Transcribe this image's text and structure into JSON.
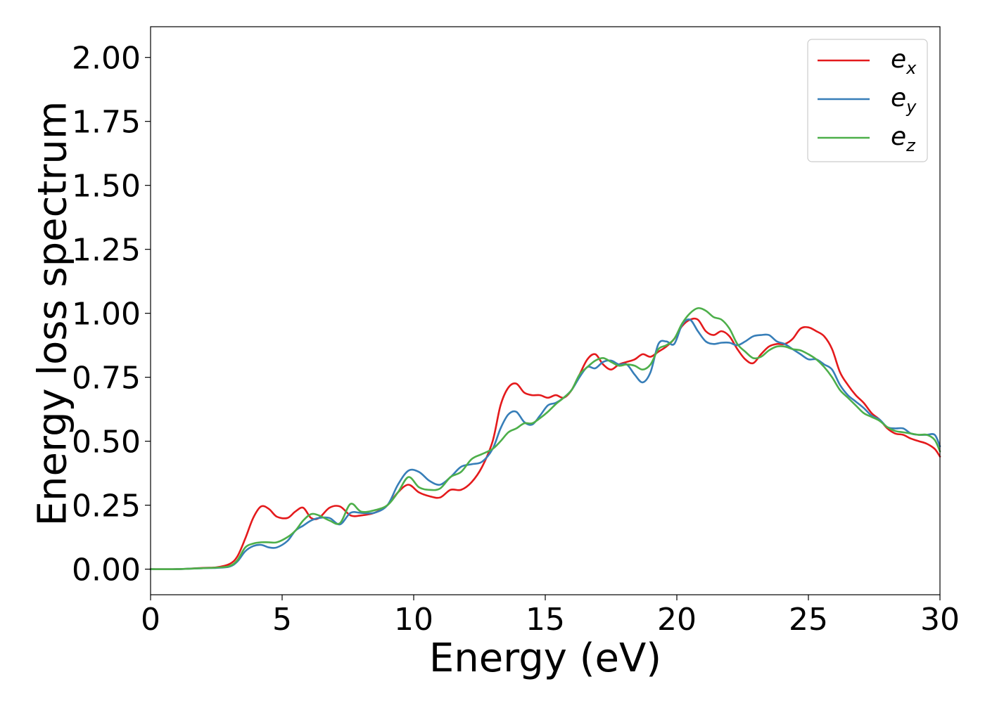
{
  "chart_data": {
    "type": "line",
    "title": "",
    "xlabel": "Energy (eV)",
    "ylabel": "Energy loss spectrum",
    "xlim": [
      0,
      30
    ],
    "ylim": [
      -0.1,
      2.12
    ],
    "xticks": [
      0,
      5,
      10,
      15,
      20,
      25,
      30
    ],
    "xtick_labels": [
      "0",
      "5",
      "10",
      "15",
      "20",
      "25",
      "30"
    ],
    "yticks": [
      0.0,
      0.25,
      0.5,
      0.75,
      1.0,
      1.25,
      1.5,
      1.75,
      2.0
    ],
    "ytick_labels": [
      "0.00",
      "0.25",
      "0.50",
      "0.75",
      "1.00",
      "1.25",
      "1.50",
      "1.75",
      "2.00"
    ],
    "grid": false,
    "legend_position": "top-right",
    "series": [
      {
        "name": "e_x",
        "label_base": "e",
        "label_sub": "x",
        "color": "#e41a1c",
        "x": [
          0,
          1,
          2,
          2.5,
          3.0,
          3.3,
          3.6,
          3.9,
          4.2,
          4.5,
          4.8,
          5.2,
          5.5,
          5.8,
          6.1,
          6.4,
          6.8,
          7.2,
          7.6,
          8.0,
          8.5,
          9.0,
          9.4,
          9.8,
          10.2,
          10.6,
          11.0,
          11.4,
          11.8,
          12.2,
          12.6,
          13.0,
          13.3,
          13.6,
          13.9,
          14.2,
          14.5,
          14.8,
          15.1,
          15.4,
          15.7,
          16.0,
          16.3,
          16.6,
          16.9,
          17.2,
          17.5,
          17.8,
          18.1,
          18.4,
          18.7,
          19.0,
          19.3,
          19.6,
          19.9,
          20.2,
          20.5,
          20.8,
          21.1,
          21.4,
          21.7,
          22.0,
          22.3,
          22.6,
          22.9,
          23.2,
          23.5,
          23.8,
          24.1,
          24.4,
          24.7,
          25.0,
          25.3,
          25.6,
          25.9,
          26.2,
          26.5,
          26.8,
          27.1,
          27.4,
          27.7,
          28.0,
          28.3,
          28.6,
          28.9,
          29.2,
          29.5,
          29.8,
          30
        ],
        "y": [
          0.0,
          0.0,
          0.005,
          0.007,
          0.02,
          0.05,
          0.12,
          0.2,
          0.245,
          0.235,
          0.205,
          0.2,
          0.225,
          0.24,
          0.2,
          0.2,
          0.24,
          0.245,
          0.21,
          0.21,
          0.22,
          0.25,
          0.3,
          0.33,
          0.3,
          0.285,
          0.28,
          0.31,
          0.31,
          0.34,
          0.4,
          0.5,
          0.64,
          0.71,
          0.725,
          0.69,
          0.68,
          0.68,
          0.67,
          0.68,
          0.67,
          0.7,
          0.76,
          0.82,
          0.84,
          0.8,
          0.78,
          0.8,
          0.81,
          0.82,
          0.84,
          0.83,
          0.85,
          0.87,
          0.9,
          0.95,
          0.975,
          0.975,
          0.93,
          0.915,
          0.93,
          0.91,
          0.86,
          0.82,
          0.805,
          0.84,
          0.87,
          0.88,
          0.88,
          0.9,
          0.94,
          0.945,
          0.93,
          0.91,
          0.86,
          0.77,
          0.72,
          0.68,
          0.65,
          0.61,
          0.585,
          0.55,
          0.53,
          0.525,
          0.51,
          0.5,
          0.49,
          0.47,
          0.44
        ]
      },
      {
        "name": "e_y",
        "label_base": "e",
        "label_sub": "y",
        "color": "#377eb8",
        "x": [
          0,
          1,
          2,
          2.5,
          3.0,
          3.3,
          3.6,
          3.9,
          4.2,
          4.5,
          4.8,
          5.2,
          5.5,
          5.8,
          6.1,
          6.4,
          6.8,
          7.2,
          7.6,
          8.0,
          8.5,
          9.0,
          9.4,
          9.8,
          10.2,
          10.6,
          11.0,
          11.4,
          11.8,
          12.2,
          12.6,
          13.0,
          13.3,
          13.6,
          13.9,
          14.2,
          14.5,
          14.8,
          15.1,
          15.4,
          15.7,
          16.0,
          16.3,
          16.6,
          16.9,
          17.2,
          17.5,
          17.8,
          18.1,
          18.4,
          18.7,
          19.0,
          19.3,
          19.6,
          19.9,
          20.2,
          20.5,
          20.8,
          21.1,
          21.4,
          21.7,
          22.0,
          22.3,
          22.6,
          22.9,
          23.2,
          23.5,
          23.8,
          24.1,
          24.4,
          24.7,
          25.0,
          25.3,
          25.6,
          25.9,
          26.2,
          26.5,
          26.8,
          27.1,
          27.4,
          27.7,
          28.0,
          28.3,
          28.6,
          28.9,
          29.2,
          29.5,
          29.8,
          30
        ],
        "y": [
          0.0,
          0.0,
          0.004,
          0.005,
          0.01,
          0.03,
          0.07,
          0.09,
          0.095,
          0.085,
          0.085,
          0.11,
          0.15,
          0.17,
          0.19,
          0.2,
          0.2,
          0.175,
          0.22,
          0.22,
          0.22,
          0.25,
          0.33,
          0.385,
          0.38,
          0.345,
          0.33,
          0.36,
          0.4,
          0.41,
          0.42,
          0.47,
          0.55,
          0.605,
          0.615,
          0.575,
          0.565,
          0.6,
          0.64,
          0.65,
          0.67,
          0.7,
          0.75,
          0.79,
          0.785,
          0.81,
          0.815,
          0.8,
          0.8,
          0.76,
          0.73,
          0.77,
          0.88,
          0.89,
          0.88,
          0.955,
          0.975,
          0.93,
          0.89,
          0.88,
          0.885,
          0.885,
          0.875,
          0.89,
          0.91,
          0.915,
          0.915,
          0.89,
          0.88,
          0.86,
          0.84,
          0.82,
          0.82,
          0.8,
          0.78,
          0.72,
          0.68,
          0.655,
          0.63,
          0.6,
          0.585,
          0.555,
          0.55,
          0.55,
          0.53,
          0.525,
          0.525,
          0.525,
          0.48
        ]
      },
      {
        "name": "e_z",
        "label_base": "e",
        "label_sub": "z",
        "color": "#4daf4a",
        "x": [
          0,
          1,
          2,
          2.5,
          3.0,
          3.3,
          3.6,
          3.9,
          4.2,
          4.5,
          4.8,
          5.2,
          5.5,
          5.8,
          6.1,
          6.4,
          6.8,
          7.2,
          7.6,
          8.0,
          8.5,
          9.0,
          9.4,
          9.8,
          10.2,
          10.6,
          11.0,
          11.4,
          11.8,
          12.2,
          12.6,
          13.0,
          13.3,
          13.6,
          13.9,
          14.2,
          14.5,
          14.8,
          15.1,
          15.4,
          15.7,
          16.0,
          16.3,
          16.6,
          16.9,
          17.2,
          17.5,
          17.8,
          18.1,
          18.4,
          18.7,
          19.0,
          19.3,
          19.6,
          19.9,
          20.2,
          20.5,
          20.8,
          21.1,
          21.4,
          21.7,
          22.0,
          22.3,
          22.6,
          22.9,
          23.2,
          23.5,
          23.8,
          24.1,
          24.4,
          24.7,
          25.0,
          25.3,
          25.6,
          25.9,
          26.2,
          26.5,
          26.8,
          27.1,
          27.4,
          27.7,
          28.0,
          28.3,
          28.6,
          28.9,
          29.2,
          29.5,
          29.8,
          30
        ],
        "y": [
          0.0,
          0.0,
          0.004,
          0.006,
          0.012,
          0.035,
          0.085,
          0.1,
          0.105,
          0.105,
          0.105,
          0.125,
          0.15,
          0.19,
          0.215,
          0.21,
          0.19,
          0.18,
          0.255,
          0.225,
          0.23,
          0.25,
          0.3,
          0.36,
          0.32,
          0.31,
          0.315,
          0.36,
          0.38,
          0.43,
          0.45,
          0.47,
          0.5,
          0.535,
          0.55,
          0.57,
          0.57,
          0.59,
          0.615,
          0.645,
          0.67,
          0.7,
          0.76,
          0.79,
          0.815,
          0.825,
          0.81,
          0.795,
          0.8,
          0.795,
          0.78,
          0.8,
          0.86,
          0.875,
          0.9,
          0.96,
          1.0,
          1.02,
          1.01,
          0.985,
          0.975,
          0.94,
          0.88,
          0.85,
          0.825,
          0.83,
          0.855,
          0.87,
          0.87,
          0.86,
          0.855,
          0.84,
          0.82,
          0.79,
          0.75,
          0.7,
          0.67,
          0.64,
          0.61,
          0.595,
          0.58,
          0.555,
          0.54,
          0.535,
          0.53,
          0.525,
          0.525,
          0.505,
          0.46
        ]
      }
    ]
  }
}
